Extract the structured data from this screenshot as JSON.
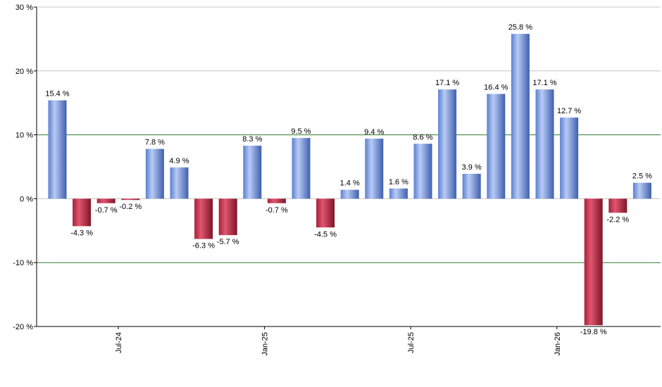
{
  "chart_data": {
    "type": "bar",
    "title": "",
    "xlabel": "",
    "ylabel": "",
    "ylim": [
      -20,
      30
    ],
    "y_ticks": [
      {
        "value": 30,
        "label": "30 %"
      },
      {
        "value": 20,
        "label": "20 %"
      },
      {
        "value": 10,
        "label": "10 %"
      },
      {
        "value": 0,
        "label": "0 %"
      },
      {
        "value": -10,
        "label": "-10 %"
      },
      {
        "value": -20,
        "label": "-20 %"
      }
    ],
    "gridlines": {
      "gray": [
        30,
        20,
        0
      ],
      "green": [
        10,
        -10
      ]
    },
    "x_tick_labels": [
      {
        "after_index": 2,
        "label": "Jul-24"
      },
      {
        "after_index": 8,
        "label": "Jan-25"
      },
      {
        "after_index": 14,
        "label": "Jul-25"
      },
      {
        "after_index": 20,
        "label": "Jan-26"
      }
    ],
    "values": [
      15.4,
      -4.3,
      -0.7,
      -0.2,
      7.8,
      4.9,
      -6.3,
      -5.7,
      8.3,
      -0.7,
      9.5,
      -4.5,
      1.4,
      9.4,
      1.6,
      8.6,
      17.1,
      3.9,
      16.4,
      25.8,
      17.1,
      12.7,
      -19.8,
      -2.2,
      2.5
    ],
    "labels": [
      "15.4 %",
      "-4.3 %",
      "-0.7 %",
      "-0.2 %",
      "7.8 %",
      "4.9 %",
      "-6.3 %",
      "-5.7 %",
      "8.3 %",
      "-0.7 %",
      "9.5 %",
      "-4.5 %",
      "1.4 %",
      "9.4 %",
      "1.6 %",
      "8.6 %",
      "17.1 %",
      "3.9 %",
      "16.4 %",
      "25.8 %",
      "17.1 %",
      "12.7 %",
      "-19.8 %",
      "-2.2 %",
      "2.5 %"
    ],
    "colors": {
      "positive": "#7a9de6",
      "negative": "#c8354f",
      "grid": "#c8c8c8",
      "grid_green": "#2e7d32",
      "axis": "#000000"
    }
  }
}
